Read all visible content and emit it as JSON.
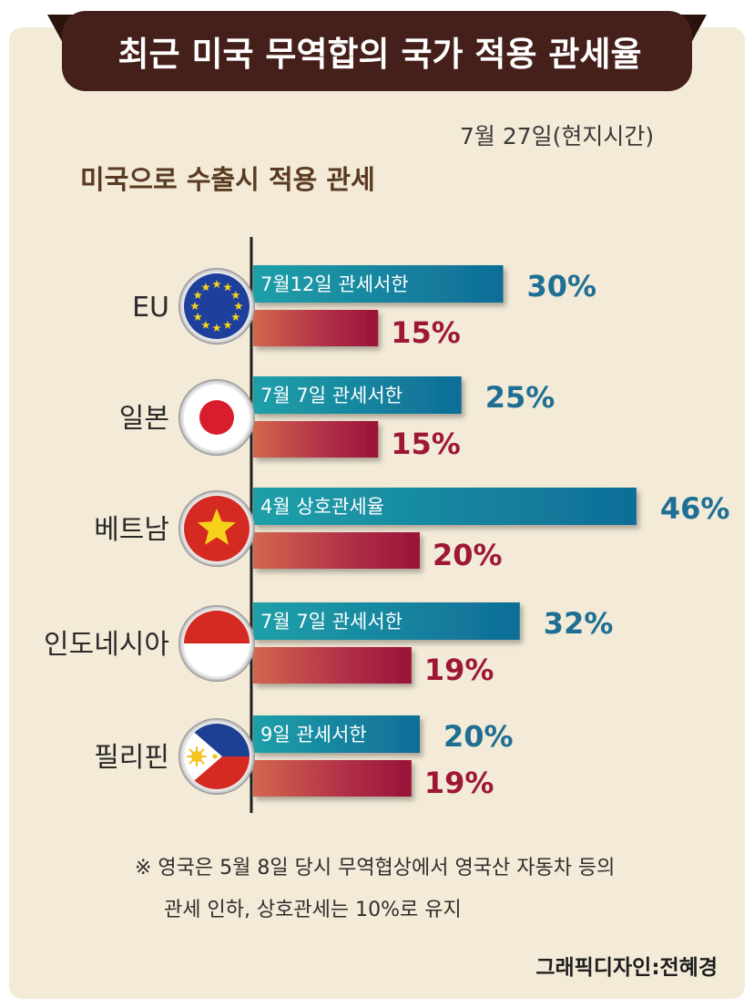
{
  "header": {
    "title": "최근 미국 무역합의 국가 적용 관세율",
    "date": "7월 27일(현지시간)",
    "subtitle": "미국으로 수출시 적용 관세"
  },
  "colors": {
    "banner": "#45201a",
    "top_bar": "#1b8ba4",
    "top_value": "#1e6f93",
    "bottom_value": "#9e1836",
    "axis": "#1e1e1e"
  },
  "chart_data": {
    "type": "bar",
    "orientation": "horizontal",
    "title": "미국으로 수출시 적용 관세",
    "categories": [
      "EU",
      "일본",
      "베트남",
      "인도네시아",
      "필리핀"
    ],
    "flags": [
      "eu-flag-icon",
      "japan-flag-icon",
      "vietnam-flag-icon",
      "indonesia-flag-icon",
      "philippines-flag-icon"
    ],
    "top_labels": [
      "7월12일 관세서한",
      "7월 7일 관세서한",
      "4월 상호관세율",
      "7월 7일 관세서한",
      "9일 관세서한"
    ],
    "series": [
      {
        "values": [
          30,
          25,
          46,
          32,
          20
        ],
        "display": [
          "30%",
          "25%",
          "46%",
          "32%",
          "20%"
        ]
      },
      {
        "values": [
          15,
          15,
          20,
          19,
          19
        ],
        "display": [
          "15%",
          "15%",
          "20%",
          "19%",
          "19%"
        ]
      }
    ],
    "unit": "%",
    "grid": false,
    "legend": "none"
  },
  "footnote": {
    "line1": "※ 영국은 5월 8일 당시 무역협상에서 영국산 자동차 등의",
    "line2": "관세 인하,  상호관세는 10%로 유지"
  },
  "credit": "그래픽디자인:전혜경"
}
